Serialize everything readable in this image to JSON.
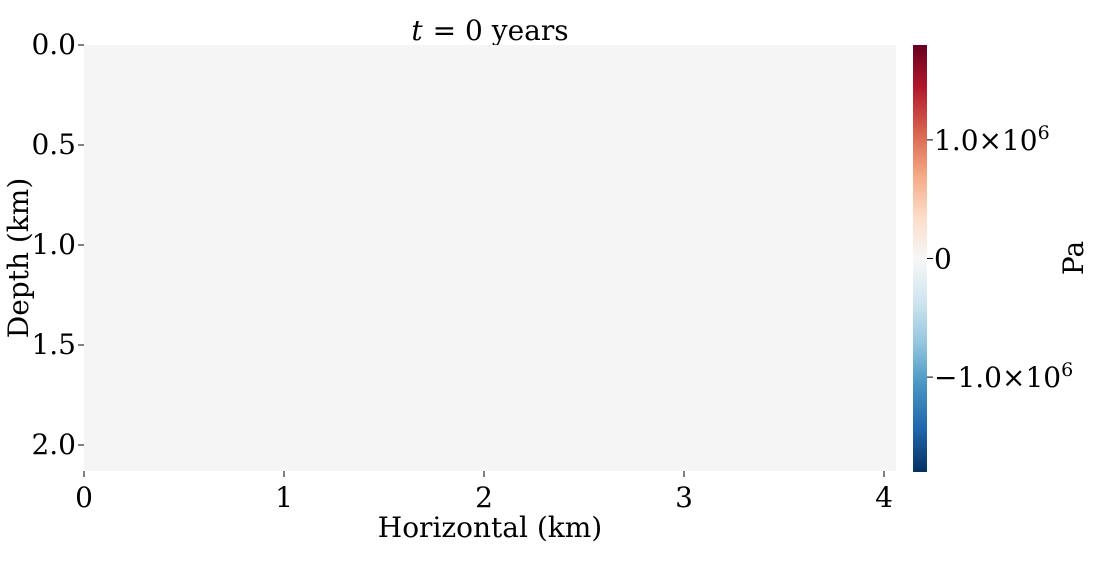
{
  "chart_data": {
    "type": "heatmap",
    "title": "t = 0 years",
    "title_var": "t",
    "title_rest": "= 0 years",
    "xlabel": "Horizontal (km)",
    "ylabel": "Depth (km)",
    "xlim": [
      0,
      4.06
    ],
    "ylim": [
      0,
      2.13
    ],
    "y_inverted": true,
    "xticks": [
      0,
      1,
      2,
      3,
      4
    ],
    "xtick_labels": [
      "0",
      "1",
      "2",
      "3",
      "4"
    ],
    "yticks": [
      0.0,
      0.5,
      1.0,
      1.5,
      2.0
    ],
    "ytick_labels": [
      "0.0",
      "0.5",
      "1.0",
      "1.5",
      "2.0"
    ],
    "field_value": 0,
    "field_color": "#f5f5f5",
    "grid": false,
    "colorbar": {
      "label": "Pa",
      "range": [
        -1800000,
        1800000
      ],
      "colormap": "RdBu_r",
      "ticks": [
        -1000000,
        0,
        1000000
      ],
      "tick_labels": [
        {
          "mant": "−1.0×10",
          "exp": "6"
        },
        {
          "mant": "0",
          "exp": ""
        },
        {
          "mant": "1.0×10",
          "exp": "6"
        }
      ],
      "stops": [
        "#053061",
        "#2166ac",
        "#4393c3",
        "#92c5de",
        "#d1e5f0",
        "#f7f7f7",
        "#fddbc7",
        "#f4a582",
        "#d6604d",
        "#b2182b",
        "#67001f"
      ]
    }
  }
}
